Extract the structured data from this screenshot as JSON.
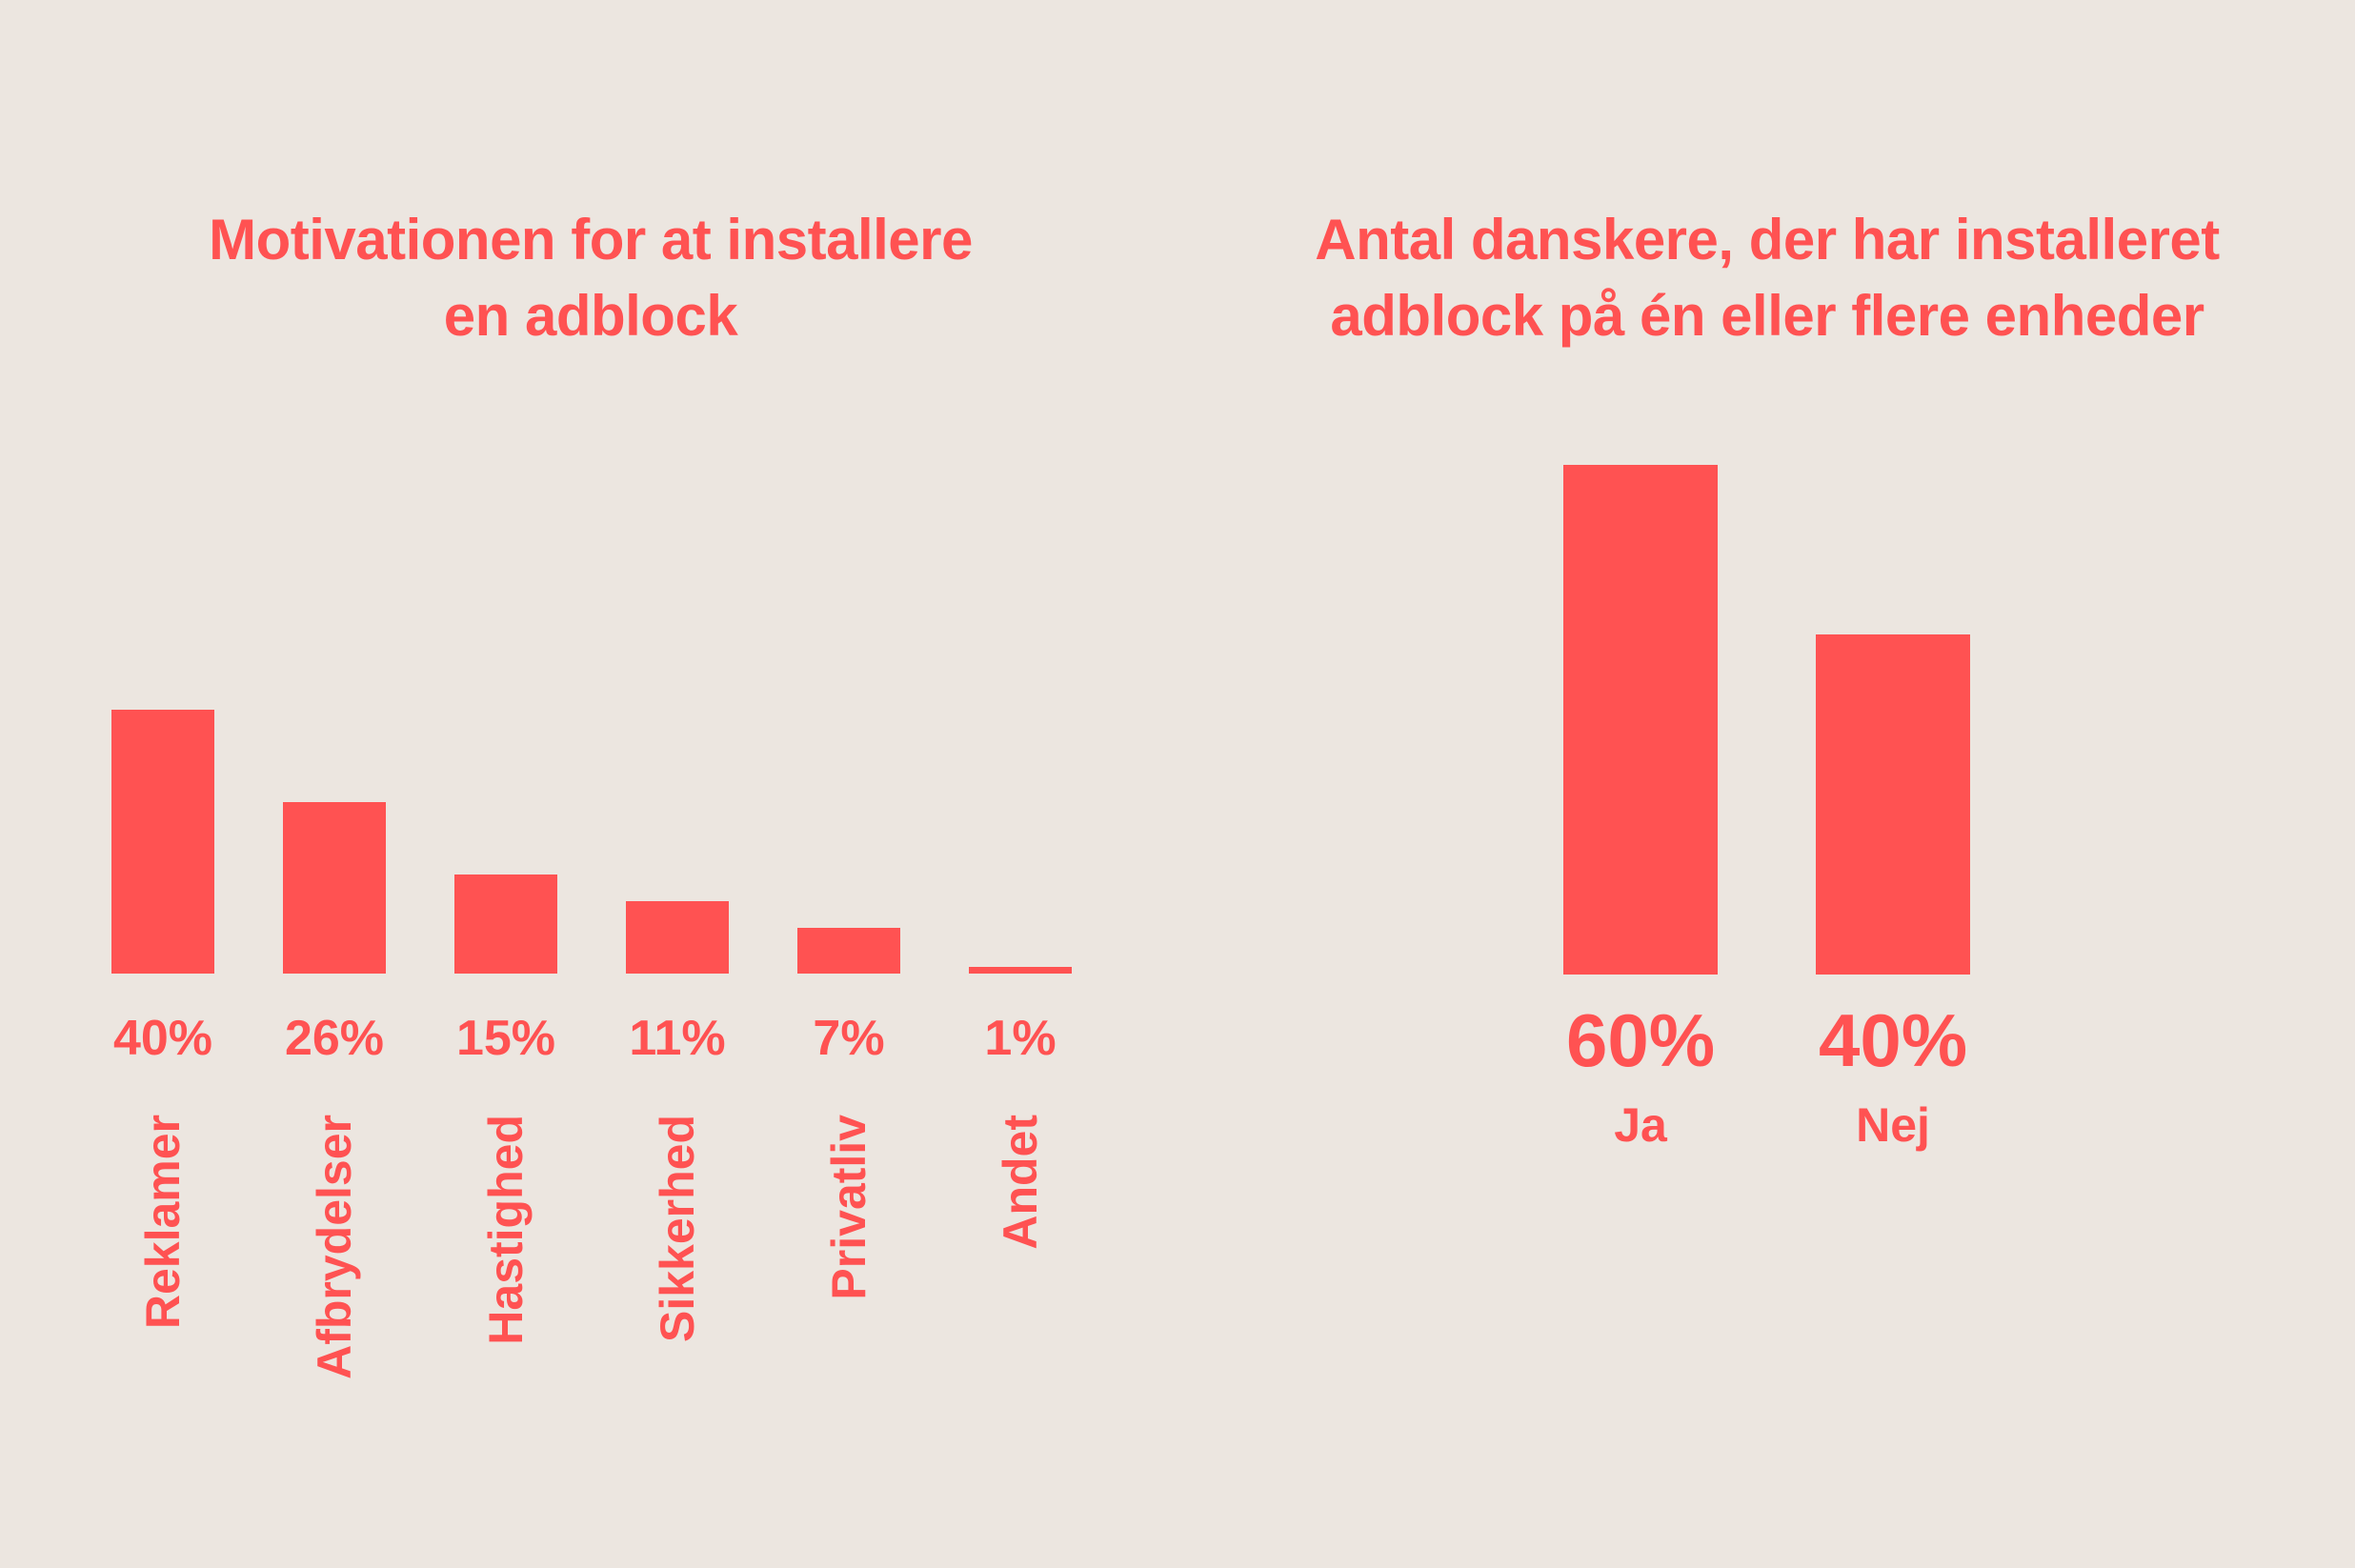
{
  "background_color": "#ECE6E0",
  "accent_color": "#FF5252",
  "chart_data": [
    {
      "type": "bar",
      "title": "Motivationen for at installere en adblock",
      "title_lines": [
        "Motivationen for at installere",
        "en adblock"
      ],
      "categories": [
        "Reklamer",
        "Afbrydelser",
        "Hastighed",
        "Sikkerhed",
        "Privatliv",
        "Andet"
      ],
      "values": [
        40,
        26,
        15,
        11,
        7,
        1
      ],
      "value_labels": [
        "40%",
        "26%",
        "15%",
        "11%",
        "7%",
        "1%"
      ],
      "unit": "%",
      "ylim": [
        0,
        40
      ],
      "grid": false,
      "bar_color": "#FF5252",
      "category_label_orientation": "rotated-90-ccw",
      "legend": "none"
    },
    {
      "type": "bar",
      "title": "Antal danskere, der har installeret adblock på én eller flere enheder",
      "title_lines": [
        "Antal danskere, der har installeret",
        "adblock på én eller flere enheder"
      ],
      "categories": [
        "Ja",
        "Nej"
      ],
      "values": [
        60,
        40
      ],
      "value_labels": [
        "60%",
        "40%"
      ],
      "unit": "%",
      "ylim": [
        0,
        60
      ],
      "grid": false,
      "bar_color": "#FF5252",
      "category_label_orientation": "horizontal",
      "legend": "none"
    }
  ]
}
